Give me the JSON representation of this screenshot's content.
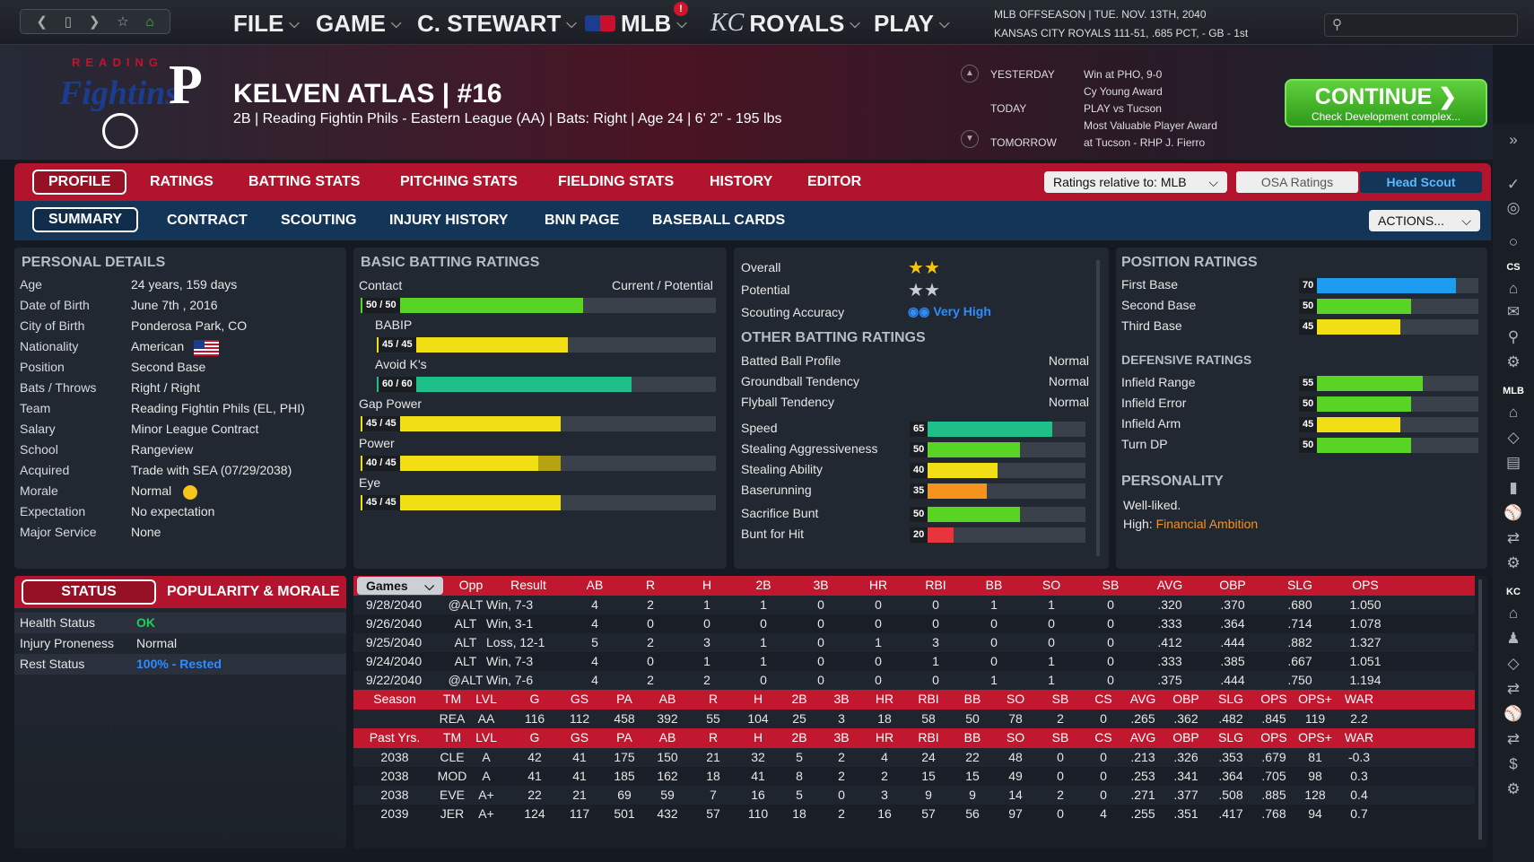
{
  "topbar": {
    "nav_icons": [
      "back-icon",
      "page-icon",
      "forward-icon",
      "star-icon",
      "home-icon"
    ],
    "menus": [
      {
        "label": "FILE"
      },
      {
        "label": "GAME"
      },
      {
        "label": "C. STEWART"
      },
      {
        "label": "MLB"
      },
      {
        "label": "ROYALS"
      },
      {
        "label": "PLAY"
      }
    ],
    "mlb_alert": "!",
    "league_status": "MLB OFFSEASON | TUE. NOV. 13TH, 2040",
    "team_status": "KANSAS CITY ROYALS  111-51, .685 PCT, - GB - 1st",
    "royals_logo": "KC"
  },
  "logo": {
    "letters": "READING",
    "script": "Fightins",
    "letter": "P"
  },
  "player": {
    "name": "KELVEN ATLAS  |  #16",
    "subtitle": "2B | Reading Fightin Phils - Eastern League (AA)  |  Bats: Right  |  Age 24  |  6' 2\" - 195 lbs"
  },
  "schedule": [
    {
      "day": "YESTERDAY",
      "lines": [
        "Win at PHO, 9-0",
        "Cy Young Award"
      ]
    },
    {
      "day": "TODAY",
      "lines": [
        "PLAY vs Tucson",
        "Most Valuable Player Award"
      ]
    },
    {
      "day": "TOMORROW",
      "lines": [
        "at Tucson - RHP J. Fierro"
      ]
    }
  ],
  "continue": {
    "label": "CONTINUE",
    "sub": "Check Development complex..."
  },
  "tabs_main": [
    "PROFILE",
    "RATINGS",
    "BATTING STATS",
    "PITCHING STATS",
    "FIELDING STATS",
    "HISTORY",
    "EDITOR"
  ],
  "ratings_relative": "Ratings relative to: MLB",
  "osa_ratings": "OSA Ratings",
  "head_scout": "Head Scout",
  "tabs_sub": [
    "SUMMARY",
    "CONTRACT",
    "SCOUTING",
    "INJURY HISTORY",
    "BNN PAGE",
    "BASEBALL CARDS"
  ],
  "actions": "ACTIONS...",
  "personal": {
    "title": "PERSONAL DETAILS",
    "rows": [
      [
        "Age",
        "24 years, 159 days"
      ],
      [
        "Date of Birth",
        "June 7th , 2016"
      ],
      [
        "City of Birth",
        "Ponderosa Park, CO"
      ],
      [
        "Nationality",
        "American"
      ],
      [
        "Position",
        "Second Base"
      ],
      [
        "Bats / Throws",
        "Right / Right"
      ],
      [
        "Team",
        "Reading Fightin Phils (EL, PHI)"
      ],
      [
        "Salary",
        "Minor League Contract"
      ],
      [
        "School",
        "Rangeview"
      ],
      [
        "Acquired",
        "Trade with SEA (07/29/2038)"
      ],
      [
        "Morale",
        "Normal"
      ],
      [
        "Expectation",
        "No expectation"
      ],
      [
        "Major Service",
        "None"
      ]
    ]
  },
  "status": {
    "tab1": "STATUS",
    "tab2": "POPULARITY & MORALE",
    "rows": [
      [
        "Health Status",
        "OK"
      ],
      [
        "Injury Proneness",
        "Normal"
      ],
      [
        "Rest Status",
        "100% - Rested"
      ]
    ]
  },
  "batting": {
    "title": "BASIC BATTING RATINGS",
    "curpot": "Current / Potential",
    "bars": [
      {
        "label": "Contact",
        "text": "50 / 50",
        "cur": 50,
        "pot": 50,
        "color": "#5ad424",
        "indent": false
      },
      {
        "label": "BABIP",
        "text": "45 / 45",
        "cur": 45,
        "pot": 45,
        "color": "#f2de14",
        "indent": true
      },
      {
        "label": "Avoid K's",
        "text": "60 / 60",
        "cur": 60,
        "pot": 60,
        "color": "#1fbf8a",
        "indent": true
      },
      {
        "label": "Gap Power",
        "text": "45 / 45",
        "cur": 45,
        "pot": 45,
        "color": "#f2de14",
        "indent": false
      },
      {
        "label": "Power",
        "text": "40 / 45",
        "cur": 40,
        "pot": 45,
        "color": "#f2de14",
        "indent": false
      },
      {
        "label": "Eye",
        "text": "45 / 45",
        "cur": 45,
        "pot": 45,
        "color": "#f2de14",
        "indent": false
      }
    ]
  },
  "summary": {
    "overall_label": "Overall",
    "overall_stars": 2,
    "potential_label": "Potential",
    "potential_stars": 2,
    "scouting_label": "Scouting Accuracy",
    "scouting_value": "Very High",
    "other_title": "OTHER BATTING RATINGS",
    "other": [
      [
        "Batted Ball Profile",
        "Normal"
      ],
      [
        "Groundball Tendency",
        "Normal"
      ],
      [
        "Flyball Tendency",
        "Normal"
      ]
    ],
    "bars": [
      {
        "label": "Speed",
        "val": 65,
        "color": "#1fbf8a"
      },
      {
        "label": "Stealing Aggressiveness",
        "val": 50,
        "color": "#5ad424"
      },
      {
        "label": "Stealing Ability",
        "val": 40,
        "color": "#f2de14"
      },
      {
        "label": "Baserunning",
        "val": 35,
        "color": "#f5931e"
      },
      {
        "label": "Sacrifice Bunt",
        "val": 50,
        "color": "#5ad424"
      },
      {
        "label": "Bunt for Hit",
        "val": 20,
        "color": "#e8343c"
      }
    ]
  },
  "position": {
    "title": "POSITION RATINGS",
    "rows": [
      {
        "label": "First Base",
        "val": 70,
        "color": "#1e9cf0"
      },
      {
        "label": "Second Base",
        "val": 50,
        "color": "#5ad424"
      },
      {
        "label": "Third Base",
        "val": 45,
        "color": "#f2de14"
      }
    ],
    "def_title": "DEFENSIVE RATINGS",
    "def": [
      {
        "label": "Infield Range",
        "val": 55,
        "color": "#5ad424"
      },
      {
        "label": "Infield Error",
        "val": 50,
        "color": "#5ad424"
      },
      {
        "label": "Infield Arm",
        "val": 45,
        "color": "#f2de14"
      },
      {
        "label": "Turn DP",
        "val": 50,
        "color": "#5ad424"
      }
    ],
    "pers_title": "PERSONALITY",
    "pers1": "Well-liked.",
    "pers2_label": "High:",
    "pers2_value": "Financial Ambition"
  },
  "games": {
    "dropdown": "Games",
    "headers": [
      "Opp",
      "Result",
      "AB",
      "R",
      "H",
      "2B",
      "3B",
      "HR",
      "RBI",
      "BB",
      "SO",
      "SB",
      "AVG",
      "OBP",
      "SLG",
      "OPS"
    ],
    "rows": [
      [
        "9/28/2040",
        "@ALT",
        "Win, 7-3",
        "4",
        "2",
        "1",
        "1",
        "0",
        "0",
        "0",
        "1",
        "1",
        "0",
        ".320",
        ".370",
        ".680",
        "1.050"
      ],
      [
        "9/26/2040",
        "ALT",
        "Win, 3-1",
        "4",
        "0",
        "0",
        "0",
        "0",
        "0",
        "0",
        "0",
        "0",
        "0",
        ".333",
        ".364",
        ".714",
        "1.078"
      ],
      [
        "9/25/2040",
        "ALT",
        "Loss, 12-1",
        "5",
        "2",
        "3",
        "1",
        "0",
        "1",
        "3",
        "0",
        "0",
        "0",
        ".412",
        ".444",
        ".882",
        "1.327"
      ],
      [
        "9/24/2040",
        "ALT",
        "Win, 7-3",
        "4",
        "0",
        "1",
        "1",
        "0",
        "0",
        "1",
        "0",
        "1",
        "0",
        ".333",
        ".385",
        ".667",
        "1.051"
      ],
      [
        "9/22/2040",
        "@ALT",
        "Win, 7-6",
        "4",
        "2",
        "2",
        "0",
        "0",
        "0",
        "0",
        "1",
        "1",
        "0",
        ".375",
        ".444",
        ".750",
        "1.194"
      ]
    ]
  },
  "season": {
    "headers": [
      "Season",
      "TM",
      "LVL",
      "G",
      "GS",
      "PA",
      "AB",
      "R",
      "H",
      "2B",
      "3B",
      "HR",
      "RBI",
      "BB",
      "SO",
      "SB",
      "CS",
      "AVG",
      "OBP",
      "SLG",
      "OPS",
      "OPS+",
      "WAR"
    ],
    "row": [
      "",
      "REA",
      "AA",
      "116",
      "112",
      "458",
      "392",
      "55",
      "104",
      "25",
      "3",
      "18",
      "58",
      "50",
      "78",
      "2",
      "0",
      ".265",
      ".362",
      ".482",
      ".845",
      "119",
      "2.2"
    ]
  },
  "past": {
    "headers": [
      "Past Yrs.",
      "TM",
      "LVL",
      "G",
      "GS",
      "PA",
      "AB",
      "R",
      "H",
      "2B",
      "3B",
      "HR",
      "RBI",
      "BB",
      "SO",
      "SB",
      "CS",
      "AVG",
      "OBP",
      "SLG",
      "OPS",
      "OPS+",
      "WAR"
    ],
    "rows": [
      [
        "2038",
        "CLE",
        "A",
        "42",
        "41",
        "175",
        "150",
        "21",
        "32",
        "5",
        "2",
        "4",
        "24",
        "22",
        "48",
        "0",
        "0",
        ".213",
        ".326",
        ".353",
        ".679",
        "81",
        "-0.3"
      ],
      [
        "2038",
        "MOD",
        "A",
        "41",
        "41",
        "185",
        "162",
        "18",
        "41",
        "8",
        "2",
        "2",
        "15",
        "15",
        "49",
        "0",
        "0",
        ".253",
        ".341",
        ".364",
        ".705",
        "98",
        "0.3"
      ],
      [
        "2038",
        "EVE",
        "A+",
        "22",
        "21",
        "69",
        "59",
        "7",
        "16",
        "5",
        "0",
        "3",
        "9",
        "9",
        "14",
        "2",
        "0",
        ".271",
        ".377",
        ".508",
        ".885",
        "128",
        "0.4"
      ],
      [
        "2039",
        "JER",
        "A+",
        "124",
        "117",
        "501",
        "432",
        "57",
        "110",
        "18",
        "2",
        "16",
        "57",
        "56",
        "97",
        "0",
        "4",
        ".255",
        ".351",
        ".417",
        ".768",
        "94",
        "0.7"
      ]
    ]
  },
  "sidebar": {
    "labels": {
      "cs": "CS",
      "mlb": "MLB",
      "kc": "KC"
    }
  }
}
